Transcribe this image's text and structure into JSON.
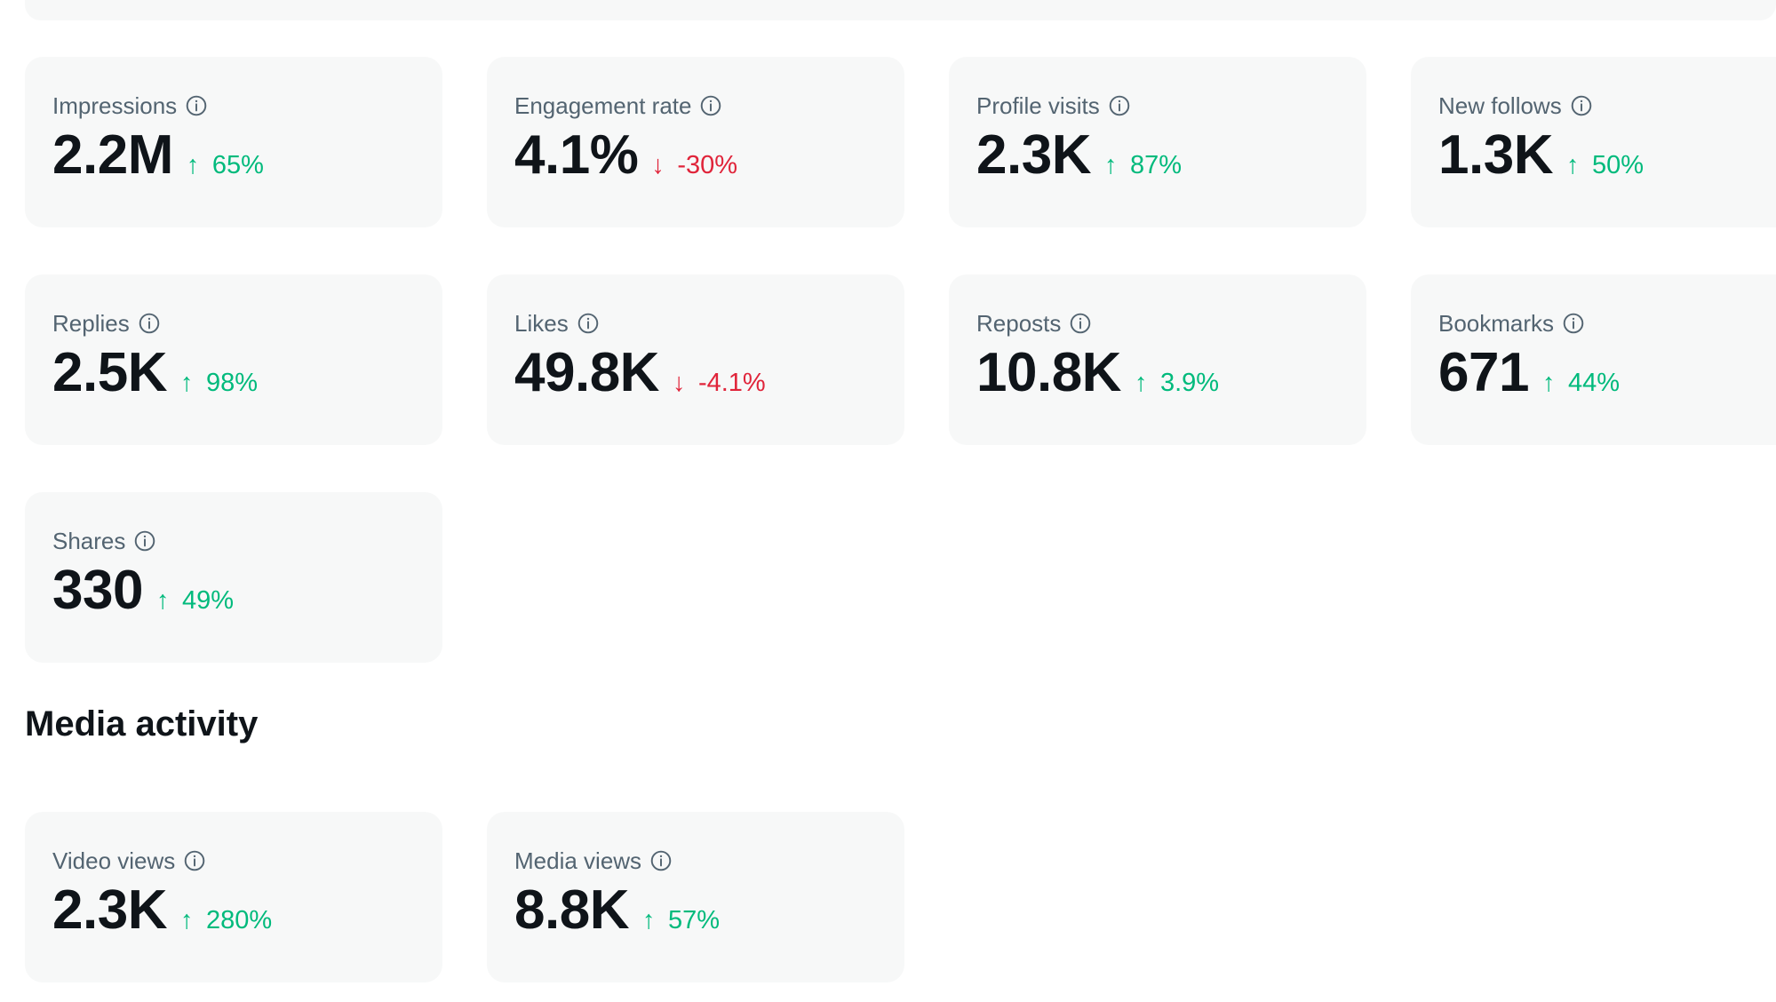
{
  "colors": {
    "card_bg": "#f7f8f8",
    "label": "#536471",
    "value": "#0f1419",
    "up": "#00ba7c",
    "down": "#e0243a"
  },
  "overview": {
    "cards": [
      {
        "label": "Impressions",
        "value": "2.2M",
        "delta": "65%",
        "trend": "up",
        "icon": "info-icon"
      },
      {
        "label": "Engagement rate",
        "value": "4.1%",
        "delta": "-30%",
        "trend": "down",
        "icon": "info-icon"
      },
      {
        "label": "Profile visits",
        "value": "2.3K",
        "delta": "87%",
        "trend": "up",
        "icon": "info-icon"
      },
      {
        "label": "New follows",
        "value": "1.3K",
        "delta": "50%",
        "trend": "up",
        "icon": "info-icon"
      },
      {
        "label": "Replies",
        "value": "2.5K",
        "delta": "98%",
        "trend": "up",
        "icon": "info-icon"
      },
      {
        "label": "Likes",
        "value": "49.8K",
        "delta": "-4.1%",
        "trend": "down",
        "icon": "info-icon"
      },
      {
        "label": "Reposts",
        "value": "10.8K",
        "delta": "3.9%",
        "trend": "up",
        "icon": "info-icon"
      },
      {
        "label": "Bookmarks",
        "value": "671",
        "delta": "44%",
        "trend": "up",
        "icon": "info-icon"
      },
      {
        "label": "Shares",
        "value": "330",
        "delta": "49%",
        "trend": "up",
        "icon": "info-icon"
      }
    ]
  },
  "media": {
    "title": "Media activity",
    "cards": [
      {
        "label": "Video views",
        "value": "2.3K",
        "delta": "280%",
        "trend": "up",
        "icon": "info-icon"
      },
      {
        "label": "Media views",
        "value": "8.8K",
        "delta": "57%",
        "trend": "up",
        "icon": "info-icon"
      }
    ]
  }
}
